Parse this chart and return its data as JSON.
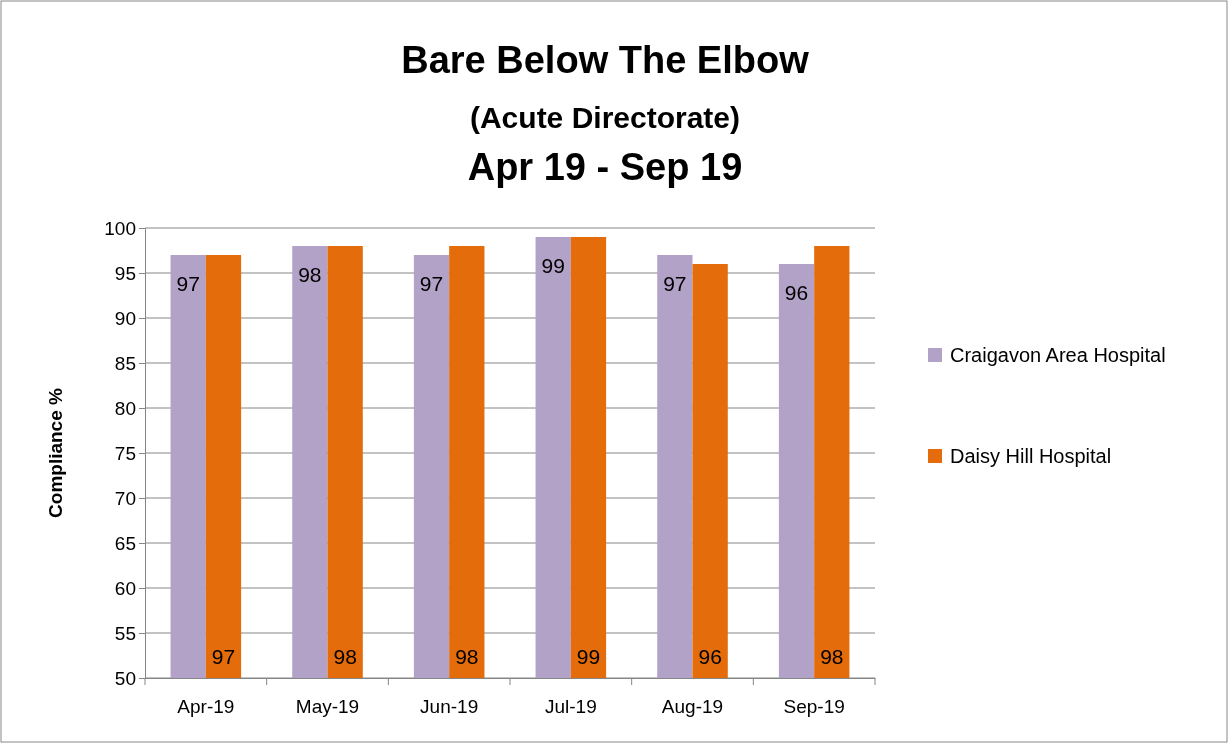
{
  "chart_data": {
    "type": "bar",
    "title": "Bare Below The Elbow",
    "subtitle": "(Acute Directorate)\nApr 19 - Sep 19",
    "ylabel": "Compliance %",
    "categories": [
      "Apr-19",
      "May-19",
      "Jun-19",
      "Jul-19",
      "Aug-19",
      "Sep-19"
    ],
    "series": [
      {
        "name": "Craigavon Area Hospital",
        "color": "#b3a2c7",
        "values": [
          97,
          98,
          97,
          99,
          97,
          96
        ]
      },
      {
        "name": "Daisy Hill Hospital",
        "color": "#e46c0a",
        "values": [
          97,
          98,
          98,
          99,
          96,
          98
        ]
      }
    ],
    "ylim": [
      50,
      100
    ],
    "yticks": [
      50,
      55,
      60,
      65,
      70,
      75,
      80,
      85,
      90,
      95,
      100
    ],
    "grid": "y",
    "legend": "right",
    "data_labels": true
  }
}
